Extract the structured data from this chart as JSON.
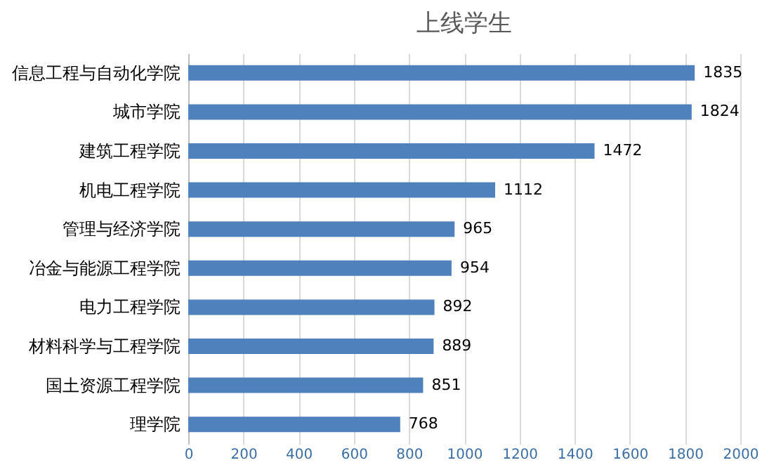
{
  "chart_data": {
    "type": "bar",
    "orientation": "horizontal",
    "title": "上线学生",
    "categories": [
      "信息工程与自动化学院",
      "城市学院",
      "建筑工程学院",
      "机电工程学院",
      "管理与经济学院",
      "冶金与能源工程学院",
      "电力工程学院",
      "材料科学与工程学院",
      "国土资源工程学院",
      "理学院"
    ],
    "values": [
      1835,
      1824,
      1472,
      1112,
      965,
      954,
      892,
      889,
      851,
      768
    ],
    "color": "#4f81bd",
    "xlim": [
      0,
      2000
    ],
    "xticks": [
      0,
      200,
      400,
      600,
      800,
      1000,
      1200,
      1400,
      1600,
      1800,
      2000
    ],
    "grid": "x",
    "data_labels": true
  }
}
